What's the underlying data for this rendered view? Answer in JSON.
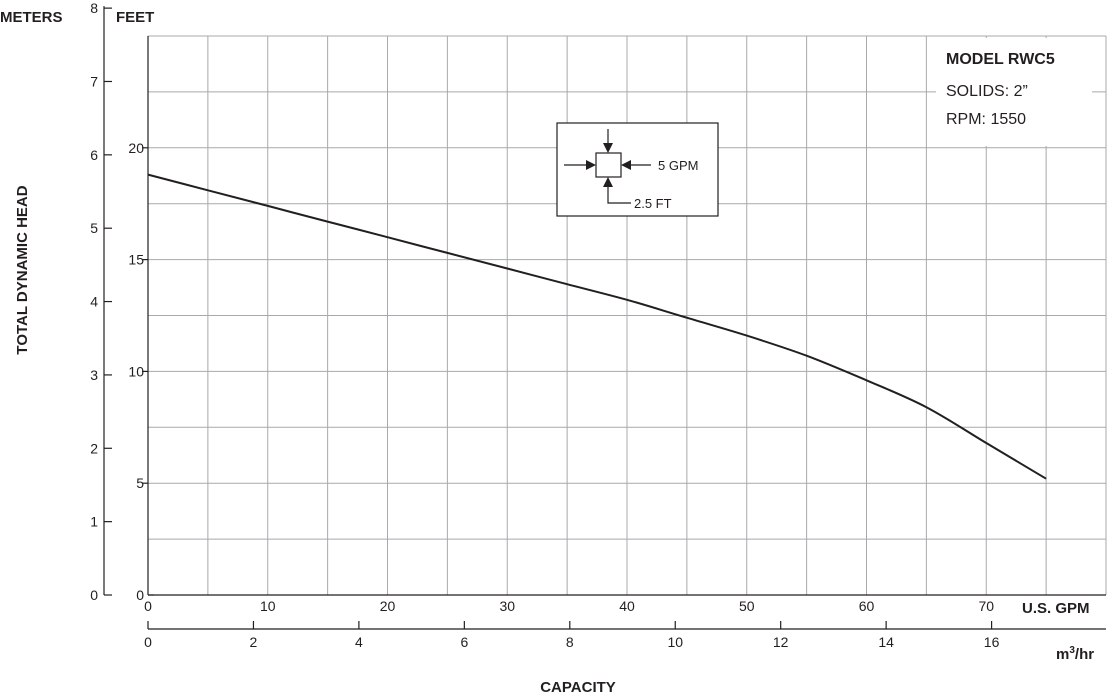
{
  "chart_data": {
    "type": "line",
    "title": "",
    "y_left_outer_label": "METERS",
    "y_left_inner_label": "FEET",
    "ylabel": "TOTAL DYNAMIC HEAD",
    "xlabel": "CAPACITY",
    "x_primary_unit": "U.S. GPM",
    "x_secondary_unit_base": "m",
    "x_secondary_unit_exp": "3",
    "x_secondary_unit_suffix": "/hr",
    "xlim": [
      0,
      80
    ],
    "ylim_feet": [
      0,
      25
    ],
    "ylim_meters": [
      0,
      8
    ],
    "x_ticks_gpm": [
      "0",
      "10",
      "20",
      "30",
      "40",
      "50",
      "60",
      "70"
    ],
    "x_ticks_m3hr": [
      "0",
      "2",
      "4",
      "6",
      "8",
      "10",
      "12",
      "14",
      "16"
    ],
    "y_ticks_feet": [
      "0",
      "5",
      "10",
      "15",
      "20"
    ],
    "y_ticks_meters": [
      "0",
      "1",
      "2",
      "3",
      "4",
      "5",
      "6",
      "7",
      "8"
    ],
    "grid": true,
    "series": [
      {
        "x": [
          0,
          5,
          10,
          15,
          20,
          25,
          30,
          35,
          40,
          45,
          50,
          55,
          60,
          65,
          70,
          75
        ],
        "y": [
          18.8,
          18.1,
          17.4,
          16.7,
          16.0,
          15.3,
          14.6,
          13.9,
          13.2,
          12.4,
          11.6,
          10.7,
          9.6,
          8.4,
          6.8,
          5.2
        ]
      }
    ],
    "legend": {
      "title": "MODEL RWC5",
      "lines": [
        "SOLIDS: 2”",
        "RPM: 1550"
      ],
      "position": "top-right"
    },
    "inset": {
      "flow_label": "5 GPM",
      "head_label": "2.5 FT"
    }
  }
}
